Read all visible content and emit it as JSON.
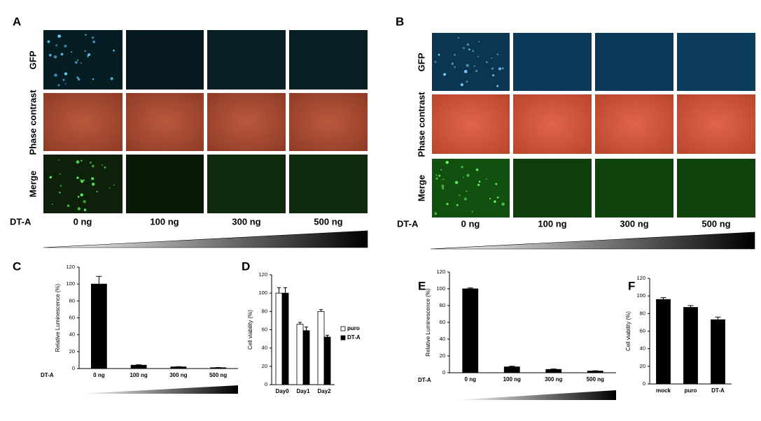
{
  "panel_a": {
    "label": "A",
    "rows": [
      "GFP",
      "Phase contrast",
      "Merge"
    ],
    "treatment": "DT-A",
    "doses": [
      "0 ng",
      "100 ng",
      "300 ng",
      "500 ng"
    ]
  },
  "panel_b": {
    "label": "B",
    "rows": [
      "GFP",
      "Phase contrast",
      "Merge"
    ],
    "treatment": "DT-A",
    "doses": [
      "0 ng",
      "100 ng",
      "300 ng",
      "500 ng"
    ]
  },
  "chart_data": [
    {
      "type": "bar",
      "panel": "C",
      "y_label": "Relative Luminescence (%)",
      "x_label": "DT-A",
      "categories": [
        "0 ng",
        "100 ng",
        "300 ng",
        "500 ng"
      ],
      "values": [
        100,
        4,
        2,
        1
      ],
      "errors": [
        9,
        0.5,
        0.3,
        0.2
      ],
      "color": "#000000",
      "ylim": [
        0,
        120
      ],
      "yticks": [
        0,
        20,
        40,
        60,
        80,
        100,
        120
      ]
    },
    {
      "type": "grouped_bar",
      "panel": "D",
      "y_label": "Cell viability (%)",
      "categories": [
        "Day0",
        "Day1",
        "Day2"
      ],
      "series": [
        {
          "name": "puro",
          "color": "#ffffff",
          "values": [
            100,
            66,
            80
          ],
          "errors": [
            6,
            2,
            2
          ]
        },
        {
          "name": "DT-A",
          "color": "#000000",
          "values": [
            100,
            59,
            52
          ],
          "errors": [
            6,
            4,
            2
          ]
        }
      ],
      "ylim": [
        0,
        120
      ],
      "yticks": [
        0,
        20,
        40,
        60,
        80,
        100,
        120
      ]
    },
    {
      "type": "bar",
      "panel": "E",
      "y_label": "Relative Luminescence (%)",
      "x_label": "DT-A",
      "categories": [
        "0 ng",
        "100 ng",
        "300 ng",
        "500 ng"
      ],
      "values": [
        100,
        7,
        4,
        2
      ],
      "errors": [
        1,
        0.8,
        0.5,
        0.4
      ],
      "color": "#000000",
      "ylim": [
        0,
        120
      ],
      "yticks": [
        0,
        20,
        40,
        60,
        80,
        100,
        120
      ]
    },
    {
      "type": "bar",
      "panel": "F",
      "y_label": "Cell viability (%)",
      "categories": [
        "mock",
        "puro",
        "DT-A"
      ],
      "values": [
        96,
        87,
        73
      ],
      "errors": [
        2,
        2,
        3
      ],
      "color": "#000000",
      "ylim": [
        0,
        120
      ],
      "yticks": [
        0,
        20,
        40,
        60,
        80,
        100,
        120
      ]
    }
  ]
}
